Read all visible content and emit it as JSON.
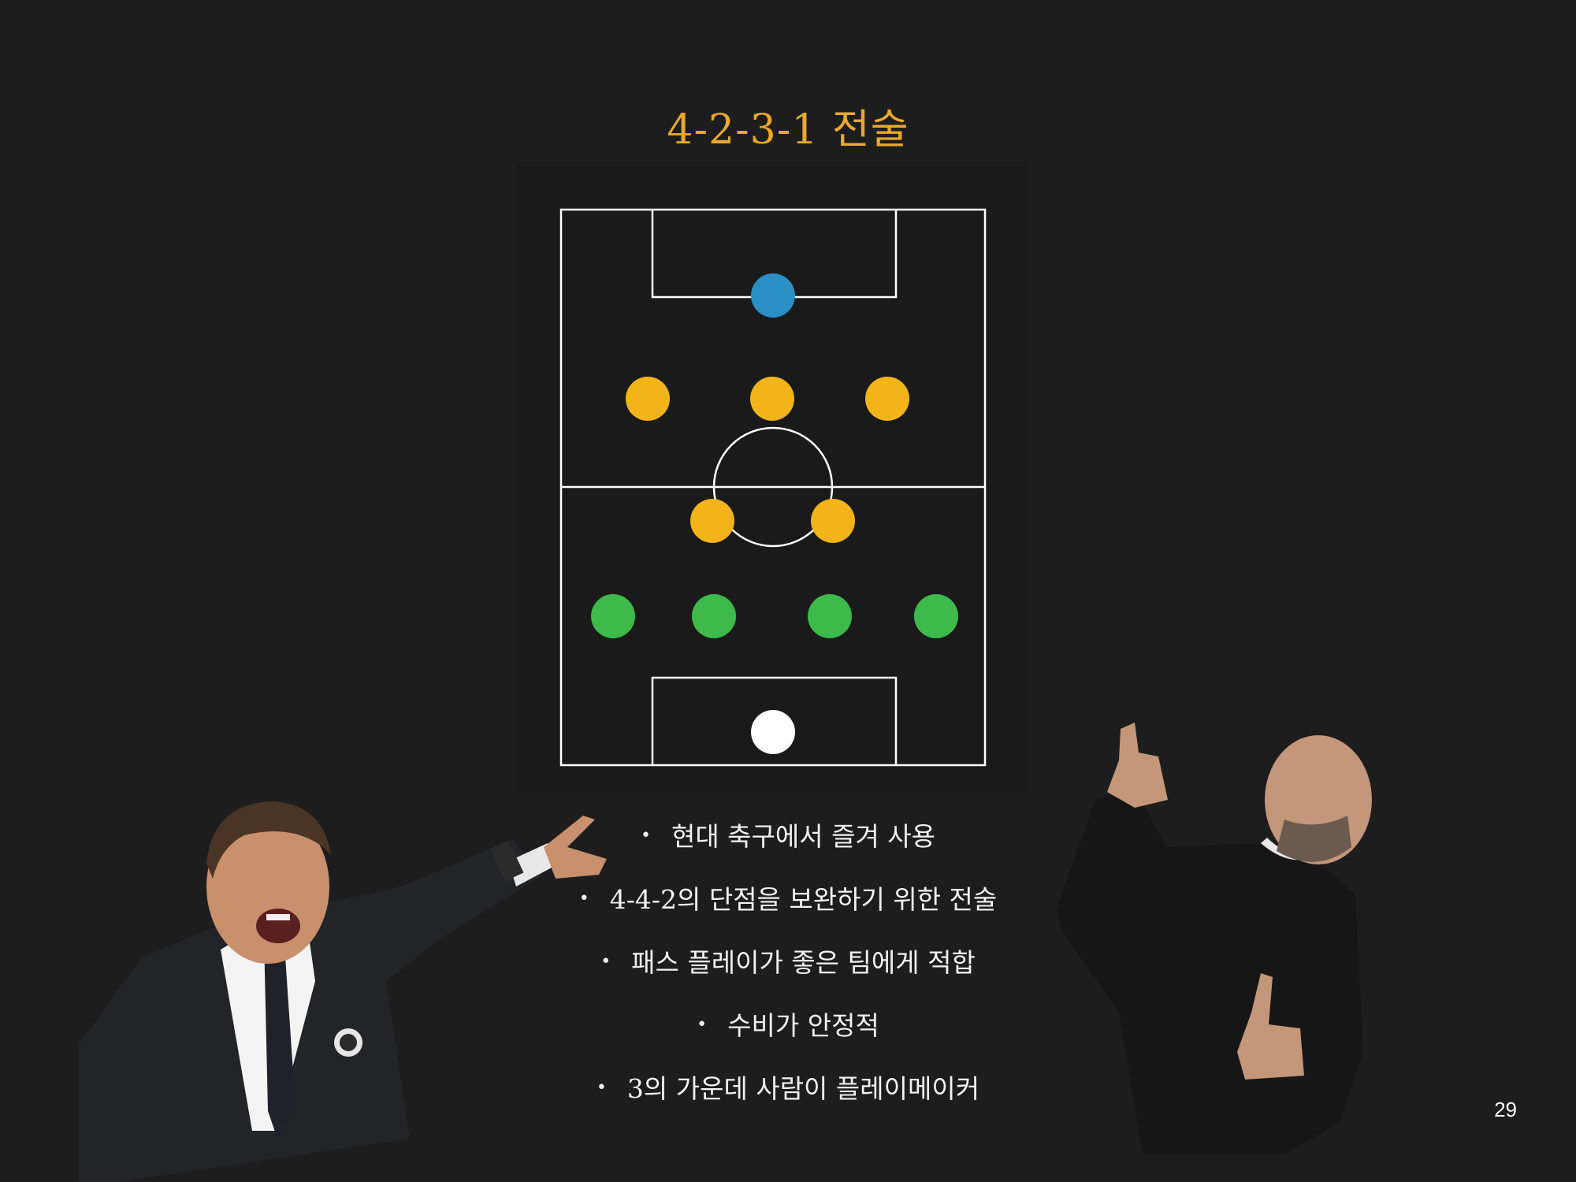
{
  "slide": {
    "title": "4-2-3-1 전술",
    "page_number": "29"
  },
  "formation": {
    "colors": {
      "goalkeeper": "#2a8fc4",
      "midfield": "#f2b418",
      "defense": "#3dba4a",
      "ball": "#ffffff",
      "lines": "#ffffff"
    }
  },
  "bullets": [
    "현대 축구에서 즐겨 사용",
    "4-4-2의 단점을 보완하기 위한 전술",
    "패스 플레이가 좋은 팀에게 적합",
    "수비가 안정적",
    "3의 가운데 사람이 플레이메이커"
  ],
  "images": {
    "left_person": "coach-pointing",
    "right_person": "coach-thumbs-up"
  }
}
